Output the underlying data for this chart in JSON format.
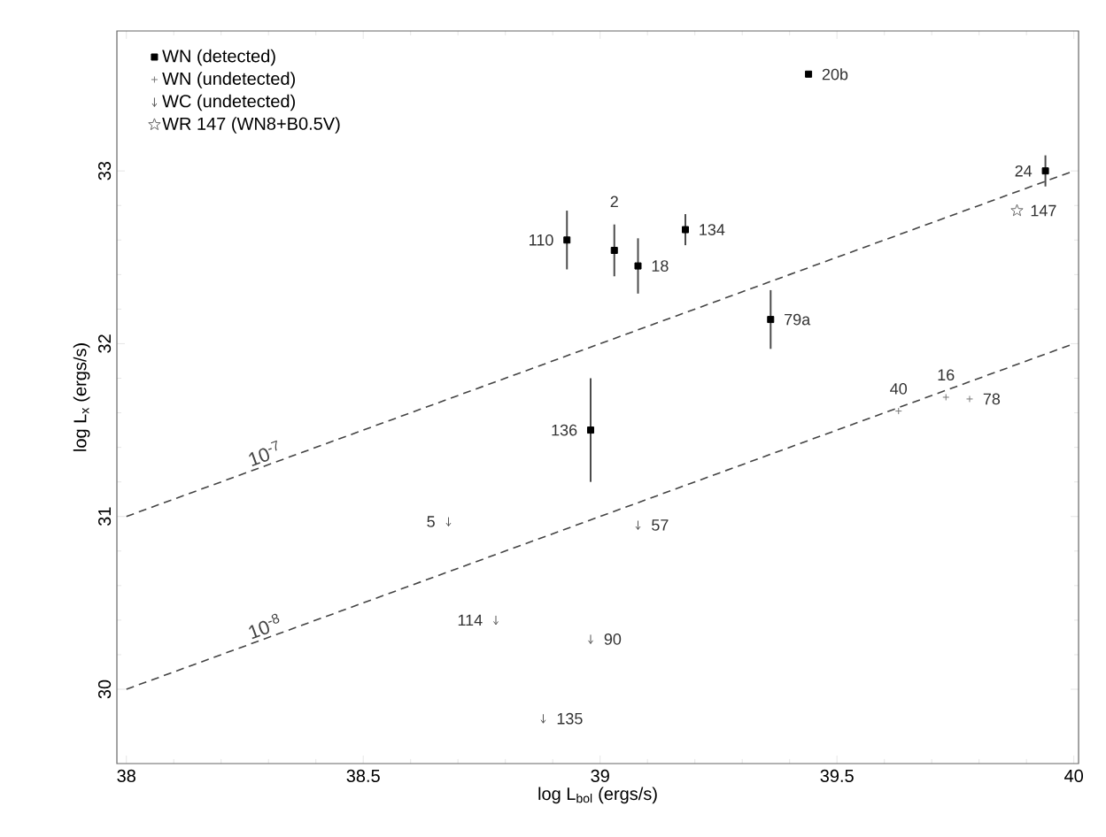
{
  "chart_data": {
    "type": "scatter",
    "xlabel": "log L$_{bol}$ (ergs/s)",
    "ylabel": "log L$_{x}$ (ergs/s)",
    "xlim": [
      37.98,
      40.01
    ],
    "ylim": [
      29.57,
      33.81
    ],
    "xticks": [
      38,
      38.5,
      39,
      39.5,
      40
    ],
    "yticks": [
      30,
      31,
      32,
      33
    ],
    "legend": "top left",
    "series": [
      {
        "name": "WN (detected)",
        "color": "#000000",
        "marker": "square",
        "x": [
          38.93,
          39.03,
          39.08,
          39.18,
          39.36,
          38.98,
          39.94,
          39.44
        ],
        "values": [
          32.6,
          32.54,
          32.45,
          32.66,
          32.14,
          31.5,
          33.0,
          33.56
        ],
        "errors": [
          0.17,
          0.15,
          0.16,
          0.09,
          0.17,
          0.3,
          0.09,
          null
        ]
      },
      {
        "name": "WN (undetected)",
        "color": "#777777",
        "marker": "cross",
        "x": [
          39.63,
          39.73,
          39.78
        ],
        "values": [
          31.61,
          31.69,
          31.68
        ]
      },
      {
        "name": "WC (undetected)",
        "color": "#555555",
        "x": [
          38.68,
          39.08,
          38.78,
          38.98,
          38.88
        ],
        "values": [
          30.97,
          30.95,
          30.4,
          30.29,
          29.83
        ]
      },
      {
        "name": "WR 147 (WN8+B0.5V)",
        "color": "#666666",
        "marker": "star",
        "x": [
          39.88
        ],
        "values": [
          32.77
        ]
      },
      {
        "name": "10$^{-7}$",
        "type": "line",
        "line_style": "dashed",
        "color": "#444444",
        "x": [
          38,
          40
        ],
        "values": [
          31,
          33
        ]
      },
      {
        "name": "10$^{-8}$",
        "type": "line",
        "line_style": "dashed",
        "color": "#444444",
        "x": [
          38,
          40
        ],
        "values": [
          30,
          32
        ]
      }
    ],
    "annotations": [
      {
        "text": "110",
        "x": 38.93,
        "y": 32.6
      },
      {
        "text": "2",
        "x": 39.03,
        "y": 32.54
      },
      {
        "text": "18",
        "x": 39.08,
        "y": 32.45
      },
      {
        "text": "134",
        "x": 39.18,
        "y": 32.66
      },
      {
        "text": "79a",
        "x": 39.36,
        "y": 32.14
      },
      {
        "text": "136",
        "x": 38.98,
        "y": 31.5
      },
      {
        "text": "24",
        "x": 39.94,
        "y": 33.0
      },
      {
        "text": "20b",
        "x": 39.44,
        "y": 33.56
      },
      {
        "text": "147",
        "x": 39.88,
        "y": 32.77
      },
      {
        "text": "40",
        "x": 39.63,
        "y": 31.61
      },
      {
        "text": "16",
        "x": 39.73,
        "y": 31.69
      },
      {
        "text": "78",
        "x": 39.78,
        "y": 31.68
      },
      {
        "text": "5",
        "x": 38.68,
        "y": 30.97
      },
      {
        "text": "57",
        "x": 39.08,
        "y": 30.95
      },
      {
        "text": "114",
        "x": 38.78,
        "y": 30.4
      },
      {
        "text": "90",
        "x": 38.98,
        "y": 30.29
      },
      {
        "text": "135",
        "x": 38.88,
        "y": 29.83
      }
    ]
  }
}
